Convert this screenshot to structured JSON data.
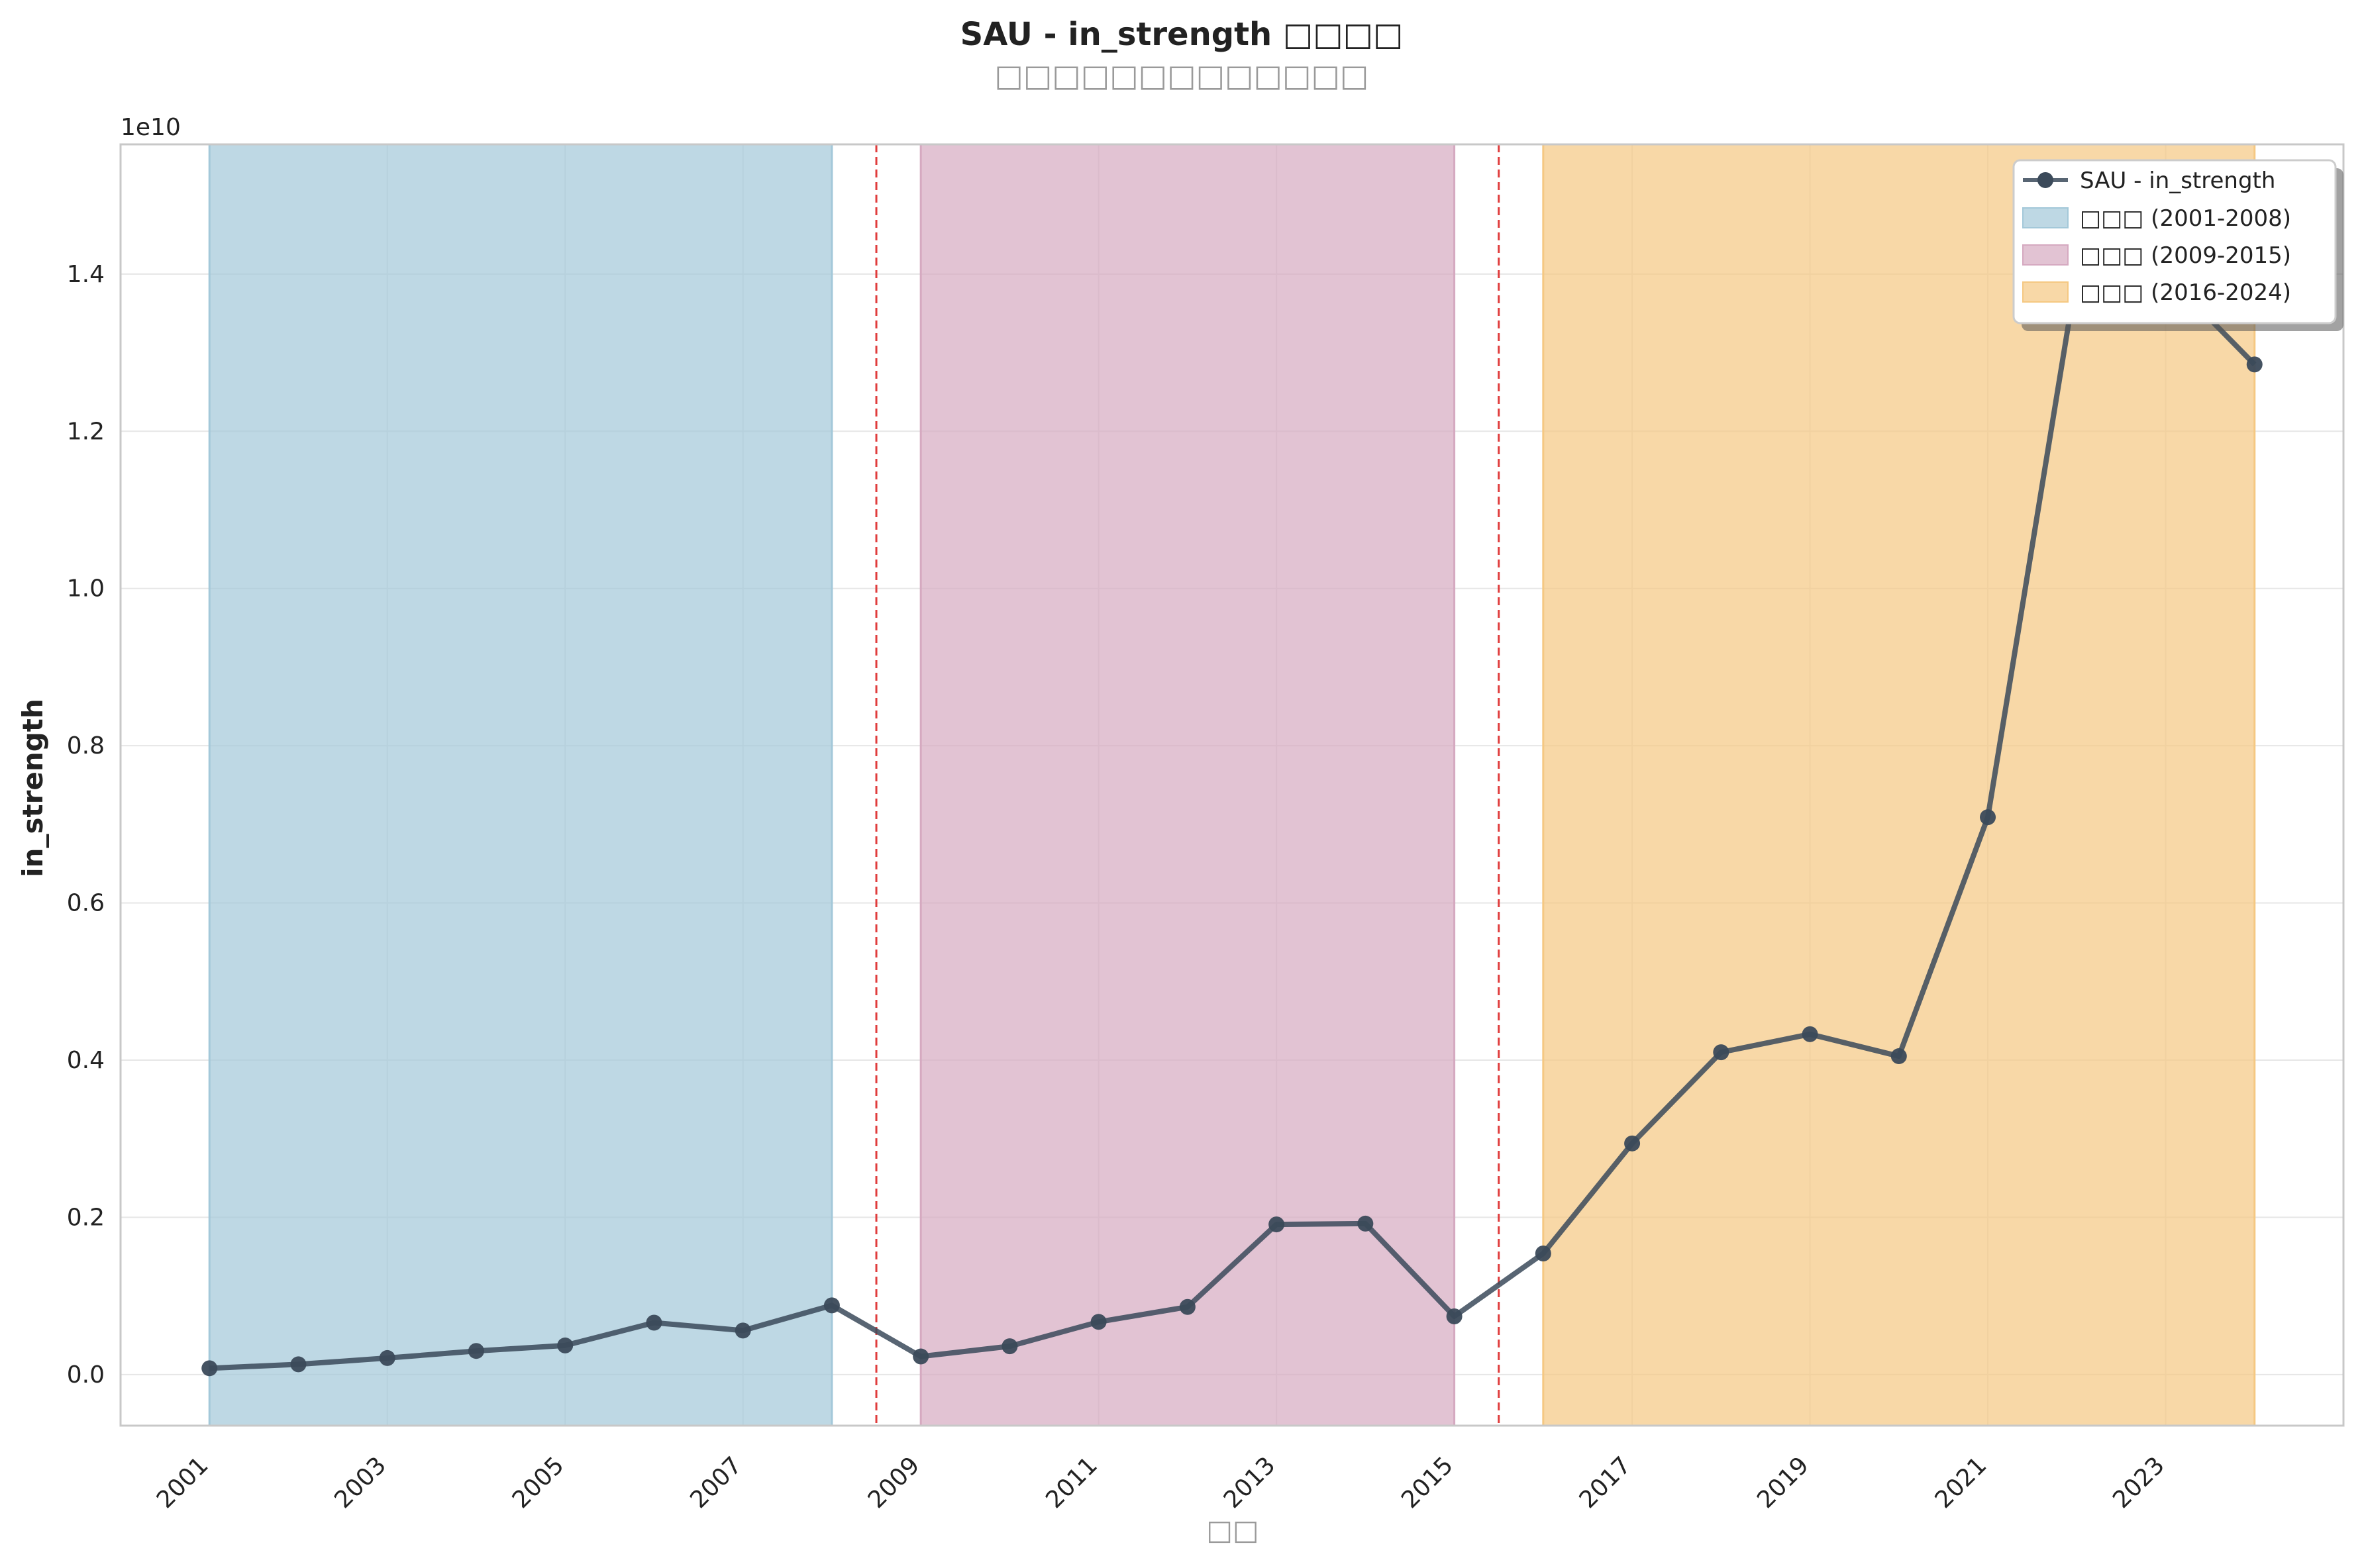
{
  "chart_data": {
    "type": "line",
    "title": "SAU - in_strength □□□□",
    "subtitle": "□□□□□□□□□□□□□",
    "xlabel": "□□",
    "ylabel": "in_strength",
    "y_scale_label": "1e10",
    "xlim": [
      2000.0,
      2025.0
    ],
    "ylim": [
      -0.065,
      1.565
    ],
    "x_ticks": [
      "2001",
      "2003",
      "2005",
      "2007",
      "2009",
      "2011",
      "2013",
      "2015",
      "2017",
      "2019",
      "2021",
      "2023"
    ],
    "y_ticks": [
      "0.0",
      "0.2",
      "0.4",
      "0.6",
      "0.8",
      "1.0",
      "1.2",
      "1.4"
    ],
    "grid": true,
    "legend_position": "top-right",
    "series": [
      {
        "name": "SAU - in_strength",
        "color": "#3b4a5a",
        "x": [
          2001,
          2002,
          2003,
          2004,
          2005,
          2006,
          2007,
          2008,
          2009,
          2010,
          2011,
          2012,
          2013,
          2014,
          2015,
          2016,
          2017,
          2018,
          2019,
          2020,
          2021,
          2022,
          2023,
          2024
        ],
        "y": [
          0.008,
          0.013,
          0.021,
          0.03,
          0.037,
          0.066,
          0.056,
          0.088,
          0.023,
          0.036,
          0.067,
          0.086,
          0.191,
          0.192,
          0.074,
          0.154,
          0.294,
          0.41,
          0.433,
          0.405,
          0.709,
          1.4,
          1.4,
          1.285
        ]
      }
    ],
    "periods": [
      {
        "label": "□□□ (2001-2008)",
        "start": 2001,
        "end": 2008,
        "color": "#a3c8d9"
      },
      {
        "label": "□□□ (2009-2015)",
        "start": 2009,
        "end": 2015,
        "color": "#d5a9c0"
      },
      {
        "label": "□□□ (2016-2024)",
        "start": 2016,
        "end": 2024,
        "color": "#f5c882"
      }
    ],
    "breakpoints": [
      2008.5,
      2015.5
    ],
    "breakpoint_color": "#e03c3c"
  }
}
